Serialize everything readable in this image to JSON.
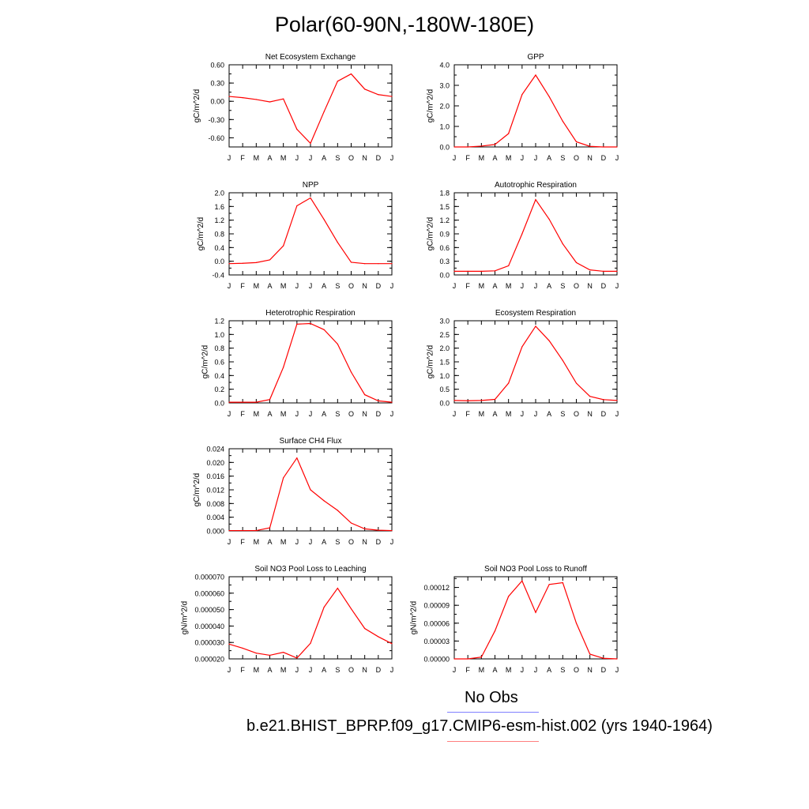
{
  "title": "Polar(60-90N,-180W-180E)",
  "legend": {
    "obs_label": "No Obs",
    "obs_color": "#8080ff",
    "model_label": "b.e21.BHIST_BPRP.f09_g17.CMIP6-esm-hist.002 (yrs 1940-1964)",
    "model_color": "#ff8080"
  },
  "series_color": "#ff0000",
  "chart_data": [
    {
      "type": "line",
      "title": "Net Ecosystem Exchange",
      "ylabel": "gC/m^2/d",
      "x": [
        "J",
        "F",
        "M",
        "A",
        "M",
        "J",
        "J",
        "A",
        "S",
        "O",
        "N",
        "D",
        "J"
      ],
      "values": [
        0.08,
        0.06,
        0.03,
        -0.01,
        0.04,
        -0.46,
        -0.69,
        -0.17,
        0.33,
        0.45,
        0.2,
        0.11,
        0.08
      ],
      "ylim": [
        -0.75,
        0.6
      ],
      "yticks": [
        "0.60",
        "0.30",
        "0.00",
        "-0.30",
        "-0.60"
      ]
    },
    {
      "type": "line",
      "title": "GPP",
      "ylabel": "gC/m^2/d",
      "x": [
        "J",
        "F",
        "M",
        "A",
        "M",
        "J",
        "J",
        "A",
        "S",
        "O",
        "N",
        "D",
        "J"
      ],
      "values": [
        0.0,
        0.0,
        0.04,
        0.12,
        0.65,
        2.55,
        3.5,
        2.45,
        1.25,
        0.25,
        0.03,
        0.0,
        0.0
      ],
      "ylim": [
        0,
        4
      ],
      "yticks": [
        "0.0",
        "1.0",
        "2.0",
        "3.0",
        "4.0"
      ]
    },
    {
      "type": "line",
      "title": "NPP",
      "ylabel": "gC/m^2/d",
      "x": [
        "J",
        "F",
        "M",
        "A",
        "M",
        "J",
        "J",
        "A",
        "S",
        "O",
        "N",
        "D",
        "J"
      ],
      "values": [
        -0.07,
        -0.06,
        -0.04,
        0.04,
        0.45,
        1.62,
        1.85,
        1.22,
        0.55,
        -0.03,
        -0.07,
        -0.07,
        -0.07
      ],
      "ylim": [
        -0.4,
        2.0
      ],
      "yticks": [
        "-0.4",
        "0.0",
        "0.4",
        "0.8",
        "1.2",
        "1.6",
        "2.0"
      ]
    },
    {
      "type": "line",
      "title": "Autotrophic Respiration",
      "ylabel": "gC/m^2/d",
      "x": [
        "J",
        "F",
        "M",
        "A",
        "M",
        "J",
        "J",
        "A",
        "S",
        "O",
        "N",
        "D",
        "J"
      ],
      "values": [
        0.08,
        0.08,
        0.08,
        0.09,
        0.2,
        0.9,
        1.65,
        1.22,
        0.68,
        0.27,
        0.11,
        0.08,
        0.08
      ],
      "ylim": [
        0,
        1.8
      ],
      "yticks": [
        "0.0",
        "0.3",
        "0.6",
        "0.9",
        "1.2",
        "1.5",
        "1.8"
      ]
    },
    {
      "type": "line",
      "title": "Heterotrophic Respiration",
      "ylabel": "gC/m^2/d",
      "x": [
        "J",
        "F",
        "M",
        "A",
        "M",
        "J",
        "J",
        "A",
        "S",
        "O",
        "N",
        "D",
        "J"
      ],
      "values": [
        0.01,
        0.01,
        0.01,
        0.05,
        0.52,
        1.15,
        1.16,
        1.07,
        0.86,
        0.45,
        0.12,
        0.03,
        0.01
      ],
      "ylim": [
        0,
        1.2
      ],
      "yticks": [
        "0.0",
        "0.2",
        "0.4",
        "0.6",
        "0.8",
        "1.0",
        "1.2"
      ]
    },
    {
      "type": "line",
      "title": "Ecosystem Respiration",
      "ylabel": "gC/m^2/d",
      "x": [
        "J",
        "F",
        "M",
        "A",
        "M",
        "J",
        "J",
        "A",
        "S",
        "O",
        "N",
        "D",
        "J"
      ],
      "values": [
        0.09,
        0.08,
        0.09,
        0.13,
        0.72,
        2.05,
        2.8,
        2.27,
        1.55,
        0.72,
        0.24,
        0.12,
        0.09
      ],
      "ylim": [
        0,
        3.0
      ],
      "yticks": [
        "0.0",
        "0.5",
        "1.0",
        "1.5",
        "2.0",
        "2.5",
        "3.0"
      ]
    },
    {
      "type": "line",
      "title": "Surface CH4 Flux",
      "ylabel": "gC/m^2/d",
      "x": [
        "J",
        "F",
        "M",
        "A",
        "M",
        "J",
        "J",
        "A",
        "S",
        "O",
        "N",
        "D",
        "J"
      ],
      "values": [
        0.0001,
        0.0001,
        0.0001,
        0.0009,
        0.0155,
        0.0213,
        0.012,
        0.0088,
        0.006,
        0.0023,
        0.0006,
        0.0002,
        0.0001
      ],
      "ylim": [
        0,
        0.024
      ],
      "yticks": [
        "0.000",
        "0.004",
        "0.008",
        "0.012",
        "0.016",
        "0.020",
        "0.024"
      ]
    },
    {
      "type": "line",
      "title": "Soil NO3 Pool Loss to Leaching",
      "ylabel": "gN/m^2/d",
      "x": [
        "J",
        "F",
        "M",
        "A",
        "M",
        "J",
        "J",
        "A",
        "S",
        "O",
        "N",
        "D",
        "J"
      ],
      "values": [
        2.9e-05,
        2.65e-05,
        2.35e-05,
        2.22e-05,
        2.4e-05,
        2.05e-05,
        2.95e-05,
        5.15e-05,
        6.3e-05,
        5.05e-05,
        3.85e-05,
        3.35e-05,
        2.93e-05
      ],
      "ylim": [
        2e-05,
        7e-05
      ],
      "yticks": [
        "0.000020",
        "0.000030",
        "0.000040",
        "0.000050",
        "0.000060",
        "0.000070"
      ]
    },
    {
      "type": "line",
      "title": "Soil NO3 Pool Loss to Runoff",
      "ylabel": "gN/m^2/d",
      "x": [
        "J",
        "F",
        "M",
        "A",
        "M",
        "J",
        "J",
        "A",
        "S",
        "O",
        "N",
        "D",
        "J"
      ],
      "values": [
        0.0,
        0.0,
        3e-06,
        4.7e-05,
        0.000105,
        0.000131,
        7.8e-05,
        0.000125,
        0.000128,
        6e-05,
        8e-06,
        1e-06,
        0.0
      ],
      "ylim": [
        0,
        0.000138
      ],
      "yticks": [
        "0.00000",
        "0.00003",
        "0.00006",
        "0.00009",
        "0.00012"
      ]
    }
  ]
}
